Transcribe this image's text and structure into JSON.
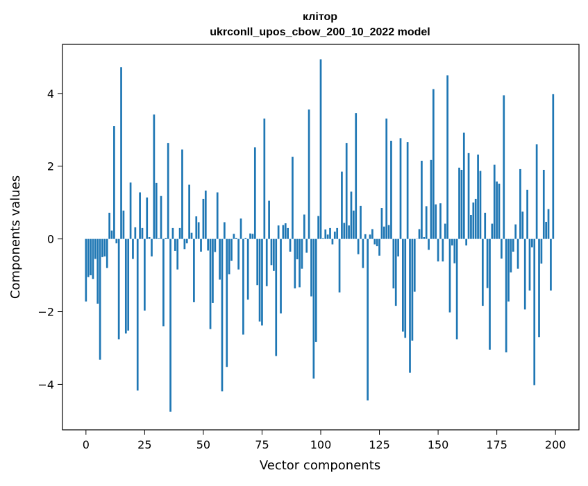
{
  "chart_data": {
    "type": "bar",
    "title": "клітор",
    "subtitle": "ukrconll_upos_cbow_200_10_2022 model",
    "xlabel": "Vector components",
    "ylabel": "Components values",
    "xlim": [
      -10,
      210
    ],
    "ylim": [
      -5.25,
      5.35
    ],
    "xticks": [
      0,
      25,
      50,
      75,
      100,
      125,
      150,
      175,
      200
    ],
    "yticks": [
      -4,
      -2,
      0,
      2,
      4
    ],
    "grid": false,
    "legend": "none",
    "bar_color": "#1f77b4",
    "series": [
      {
        "values": [
          -1.72,
          -1.05,
          -1.0,
          -1.1,
          -0.55,
          -1.78,
          -3.32,
          -0.5,
          -0.48,
          -0.8,
          0.72,
          0.23,
          3.1,
          -0.12,
          -2.76,
          4.72,
          0.78,
          -2.6,
          -2.52,
          1.55,
          -0.55,
          0.32,
          -4.17,
          1.28,
          0.3,
          -1.97,
          1.14,
          0.05,
          -0.48,
          3.42,
          1.54,
          0.02,
          1.18,
          -2.4,
          0.03,
          2.64,
          -4.75,
          0.3,
          -0.33,
          -0.84,
          0.3,
          2.46,
          -0.28,
          -0.12,
          1.49,
          0.17,
          -1.74,
          0.62,
          0.46,
          -0.35,
          1.1,
          1.33,
          -0.32,
          -2.48,
          -1.76,
          -0.36,
          1.28,
          -1.12,
          -4.19,
          0.46,
          -3.52,
          -0.97,
          -0.6,
          0.14,
          0.03,
          -0.84,
          0.56,
          -2.63,
          0.03,
          -1.67,
          0.15,
          0.14,
          2.52,
          -1.27,
          -2.27,
          -2.38,
          3.31,
          -1.3,
          1.05,
          -0.72,
          -0.88,
          -3.22,
          0.37,
          -2.05,
          0.38,
          0.43,
          0.3,
          -0.35,
          2.26,
          -1.36,
          -0.56,
          -1.33,
          -0.82,
          0.67,
          -0.38,
          3.56,
          -1.58,
          -3.84,
          -2.83,
          0.63,
          4.94,
          0.02,
          0.26,
          0.12,
          0.3,
          -0.15,
          0.2,
          0.3,
          -1.47,
          1.85,
          0.44,
          2.64,
          0.37,
          1.3,
          0.78,
          3.46,
          -0.42,
          0.91,
          -0.8,
          0.13,
          -4.44,
          0.12,
          0.27,
          -0.15,
          -0.2,
          -0.46,
          0.85,
          0.34,
          3.31,
          0.38,
          2.7,
          -1.36,
          -1.84,
          -0.48,
          2.77,
          -2.55,
          -2.72,
          2.66,
          -3.68,
          -2.8,
          -1.45,
          0.0,
          0.27,
          2.15,
          0.05,
          0.9,
          -0.3,
          2.17,
          4.12,
          0.95,
          -0.62,
          0.98,
          -0.62,
          0.42,
          4.5,
          -2.02,
          -0.18,
          -0.67,
          -2.76,
          1.96,
          1.9,
          2.92,
          -0.18,
          2.36,
          0.66,
          1.0,
          1.1,
          2.32,
          1.87,
          -1.84,
          0.72,
          -1.35,
          -3.05,
          0.42,
          2.04,
          1.58,
          1.52,
          -0.54,
          3.95,
          -3.12,
          -1.72,
          -0.92,
          -0.35,
          0.4,
          -0.82,
          1.92,
          0.75,
          -1.94,
          1.35,
          -1.42,
          -0.23,
          -4.02,
          2.6,
          -2.7,
          -0.68,
          1.9,
          0.47,
          0.82,
          -1.42,
          3.98
        ]
      }
    ]
  }
}
